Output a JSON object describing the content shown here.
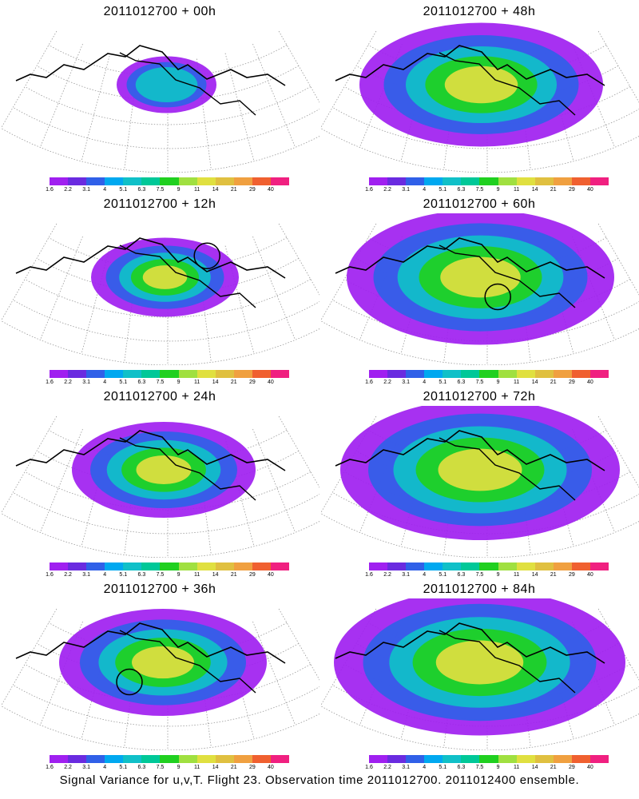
{
  "panels": [
    {
      "title": "2011012700 + 00h",
      "spread": 0.15,
      "circle": null
    },
    {
      "title": "2011012700 + 48h",
      "spread": 0.75,
      "circle": null
    },
    {
      "title": "2011012700 + 12h",
      "spread": 0.35,
      "circle": [
        0.72,
        0.28
      ]
    },
    {
      "title": "2011012700 + 60h",
      "spread": 0.85,
      "circle": [
        0.62,
        0.55
      ]
    },
    {
      "title": "2011012700 + 24h",
      "spread": 0.5,
      "circle": null
    },
    {
      "title": "2011012700 + 72h",
      "spread": 0.9,
      "circle": null
    },
    {
      "title": "2011012700 + 36h",
      "spread": 0.6,
      "circle": [
        0.45,
        0.55
      ]
    },
    {
      "title": "2011012700 + 84h",
      "spread": 0.95,
      "circle": null
    }
  ],
  "colorbar": {
    "colors": [
      "#a020f0",
      "#6a2be0",
      "#3060e8",
      "#00a8f0",
      "#10c0c8",
      "#00c898",
      "#20d020",
      "#a0e040",
      "#e0e040",
      "#e0c040",
      "#f0a040",
      "#f06030",
      "#f02080"
    ],
    "ticks": [
      "1.6",
      "2.2",
      "3.1",
      "4",
      "5.1",
      "6.3",
      "7.5",
      "9",
      "11",
      "14",
      "21",
      "29",
      "40"
    ]
  },
  "footer": "Signal Variance for u,v,T. Flight 23. Observation time 2011012700. 2011012400 ensemble."
}
